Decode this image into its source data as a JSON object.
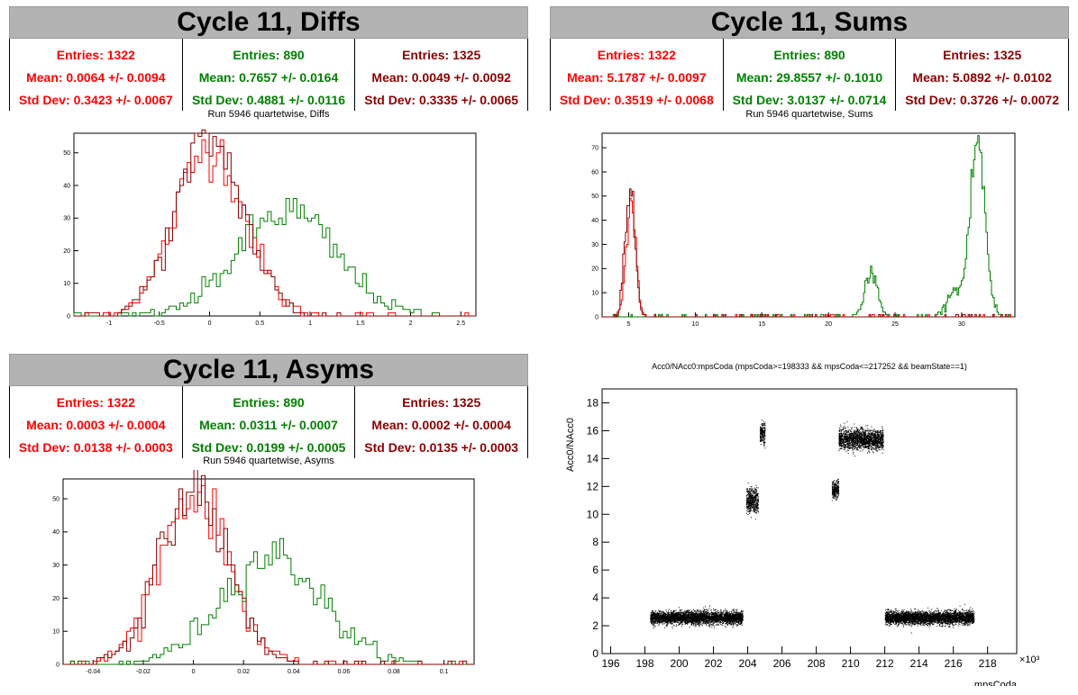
{
  "panels": {
    "diffs": {
      "title": "Cycle 11, Diffs",
      "subtitle": "Run 5946 quartetwise, Diffs",
      "stats": [
        {
          "entries": "Entries: 1322",
          "mean": "Mean: 0.0064 +/- 0.0094",
          "std": "Std Dev: 0.3423 +/- 0.0067",
          "color": "#ff0000"
        },
        {
          "entries": "Entries: 890",
          "mean": "Mean: 0.7657 +/- 0.0164",
          "std": "Std Dev: 0.4881 +/- 0.0116",
          "color": "#008000"
        },
        {
          "entries": "Entries: 1325",
          "mean": "Mean: 0.0049 +/- 0.0092",
          "std": "Std Dev: 0.3335 +/- 0.0065",
          "color": "#8b0000"
        }
      ]
    },
    "sums": {
      "title": "Cycle 11, Sums",
      "subtitle": "Run 5946 quartetwise, Sums",
      "stats": [
        {
          "entries": "Entries: 1322",
          "mean": "Mean: 5.1787 +/- 0.0097",
          "std": "Std Dev: 0.3519 +/- 0.0068",
          "color": "#ff0000"
        },
        {
          "entries": "Entries: 890",
          "mean": "Mean: 29.8557 +/- 0.1010",
          "std": "Std Dev: 3.0137 +/- 0.0714",
          "color": "#008000"
        },
        {
          "entries": "Entries: 1325",
          "mean": "Mean: 5.0892 +/- 0.0102",
          "std": "Std Dev: 0.3726 +/- 0.0072",
          "color": "#8b0000"
        }
      ]
    },
    "asyms": {
      "title": "Cycle 11, Asyms",
      "subtitle": "Run 5946 quartetwise, Asyms",
      "stats": [
        {
          "entries": "Entries: 1322",
          "mean": "Mean: 0.0003 +/- 0.0004",
          "std": "Std Dev: 0.0138 +/- 0.0003",
          "color": "#ff0000"
        },
        {
          "entries": "Entries: 890",
          "mean": "Mean: 0.0311 +/- 0.0007",
          "std": "Std Dev: 0.0199 +/- 0.0005",
          "color": "#008000"
        },
        {
          "entries": "Entries: 1325",
          "mean": "Mean: 0.0002 +/- 0.0004",
          "std": "Std Dev: 0.0135 +/- 0.0003",
          "color": "#8b0000"
        }
      ]
    },
    "scatter": {
      "title": "Acc0/NAcc0:mpsCoda (mpsCoda>=198333 && mpsCoda<=217252 && beamState==1)"
    }
  },
  "chart_data": [
    {
      "type": "bar",
      "title": "Run 5946 quartetwise, Diffs",
      "xlim": [
        -1.35,
        2.65
      ],
      "ylim": [
        0,
        56
      ],
      "xticks": [
        -1,
        -0.5,
        0,
        0.5,
        1,
        1.5,
        2,
        2.5
      ],
      "xtick_labels": [
        "-1",
        "-0.5",
        "0",
        "0.5",
        "1",
        "1.5",
        "2",
        "2.5"
      ],
      "yticks": [
        0,
        10,
        20,
        30,
        40,
        50
      ],
      "series": [
        {
          "color": "#ff0000",
          "mean": 0.0064,
          "std": 0.3423,
          "n": 1322,
          "peak": 52
        },
        {
          "color": "#008000",
          "mean": 0.7657,
          "std": 0.4881,
          "n": 890,
          "peak": 32
        },
        {
          "color": "#8b0000",
          "mean": 0.0049,
          "std": 0.3335,
          "n": 1325,
          "peak": 54
        }
      ]
    },
    {
      "type": "bar",
      "title": "Run 5946 quartetwise, Sums",
      "xlim": [
        3,
        34
      ],
      "ylim": [
        0,
        76
      ],
      "xticks": [
        5,
        10,
        15,
        20,
        25,
        30
      ],
      "xtick_labels": [
        "5",
        "10",
        "15",
        "20",
        "25",
        "30"
      ],
      "yticks": [
        0,
        10,
        20,
        30,
        40,
        50,
        60,
        70
      ],
      "series": [
        {
          "color": "#ff0000",
          "peaks": [
            {
              "mean": 5.18,
              "std": 0.35,
              "peak": 48
            }
          ]
        },
        {
          "color": "#008000",
          "peaks": [
            {
              "mean": 23.2,
              "std": 0.45,
              "peak": 19
            },
            {
              "mean": 29.5,
              "std": 0.6,
              "peak": 10
            },
            {
              "mean": 31.2,
              "std": 0.55,
              "peak": 73
            }
          ]
        },
        {
          "color": "#8b0000",
          "peaks": [
            {
              "mean": 5.09,
              "std": 0.37,
              "peak": 53
            }
          ]
        }
      ]
    },
    {
      "type": "bar",
      "title": "Run 5946 quartetwise, Asyms",
      "xlim": [
        -0.052,
        0.112
      ],
      "ylim": [
        0,
        56
      ],
      "xticks": [
        -0.04,
        -0.02,
        0,
        0.02,
        0.04,
        0.06,
        0.08,
        0.1
      ],
      "xtick_labels": [
        "-0.04",
        "-0.02",
        "0",
        "0.02",
        "0.04",
        "0.06",
        "0.08",
        "0.1"
      ],
      "yticks": [
        0,
        10,
        20,
        30,
        40,
        50
      ],
      "series": [
        {
          "color": "#ff0000",
          "mean": 0.0003,
          "std": 0.0138,
          "n": 1322,
          "peak": 52
        },
        {
          "color": "#008000",
          "mean": 0.0311,
          "std": 0.0199,
          "n": 890,
          "peak": 33
        },
        {
          "color": "#8b0000",
          "mean": 0.0002,
          "std": 0.0135,
          "n": 1325,
          "peak": 53
        }
      ]
    },
    {
      "type": "scatter",
      "title": "Acc0/NAcc0:mpsCoda (mpsCoda>=198333 && mpsCoda<=217252 && beamState==1)",
      "xlabel": "mpsCoda",
      "ylabel": "Acc0/NAcc0",
      "xexp": "×10³",
      "xlim": [
        195.5,
        219.7
      ],
      "ylim": [
        0,
        19
      ],
      "xticks": [
        196,
        198,
        200,
        202,
        204,
        206,
        208,
        210,
        212,
        214,
        216,
        218
      ],
      "yticks": [
        0,
        2,
        4,
        6,
        8,
        10,
        12,
        14,
        16,
        18
      ],
      "clusters": [
        {
          "x": [
            198.3,
            203.7
          ],
          "y": 2.6,
          "spread": 0.45
        },
        {
          "x": [
            203.9,
            204.6
          ],
          "y": 11.0,
          "spread": 0.9
        },
        {
          "x": [
            204.7,
            205.0
          ],
          "y": 15.8,
          "spread": 0.7
        },
        {
          "x": [
            208.9,
            209.3
          ],
          "y": 11.8,
          "spread": 0.6
        },
        {
          "x": [
            209.3,
            211.9
          ],
          "y": 15.4,
          "spread": 0.7
        },
        {
          "x": [
            212.0,
            217.2
          ],
          "y": 2.6,
          "spread": 0.45
        }
      ]
    }
  ]
}
